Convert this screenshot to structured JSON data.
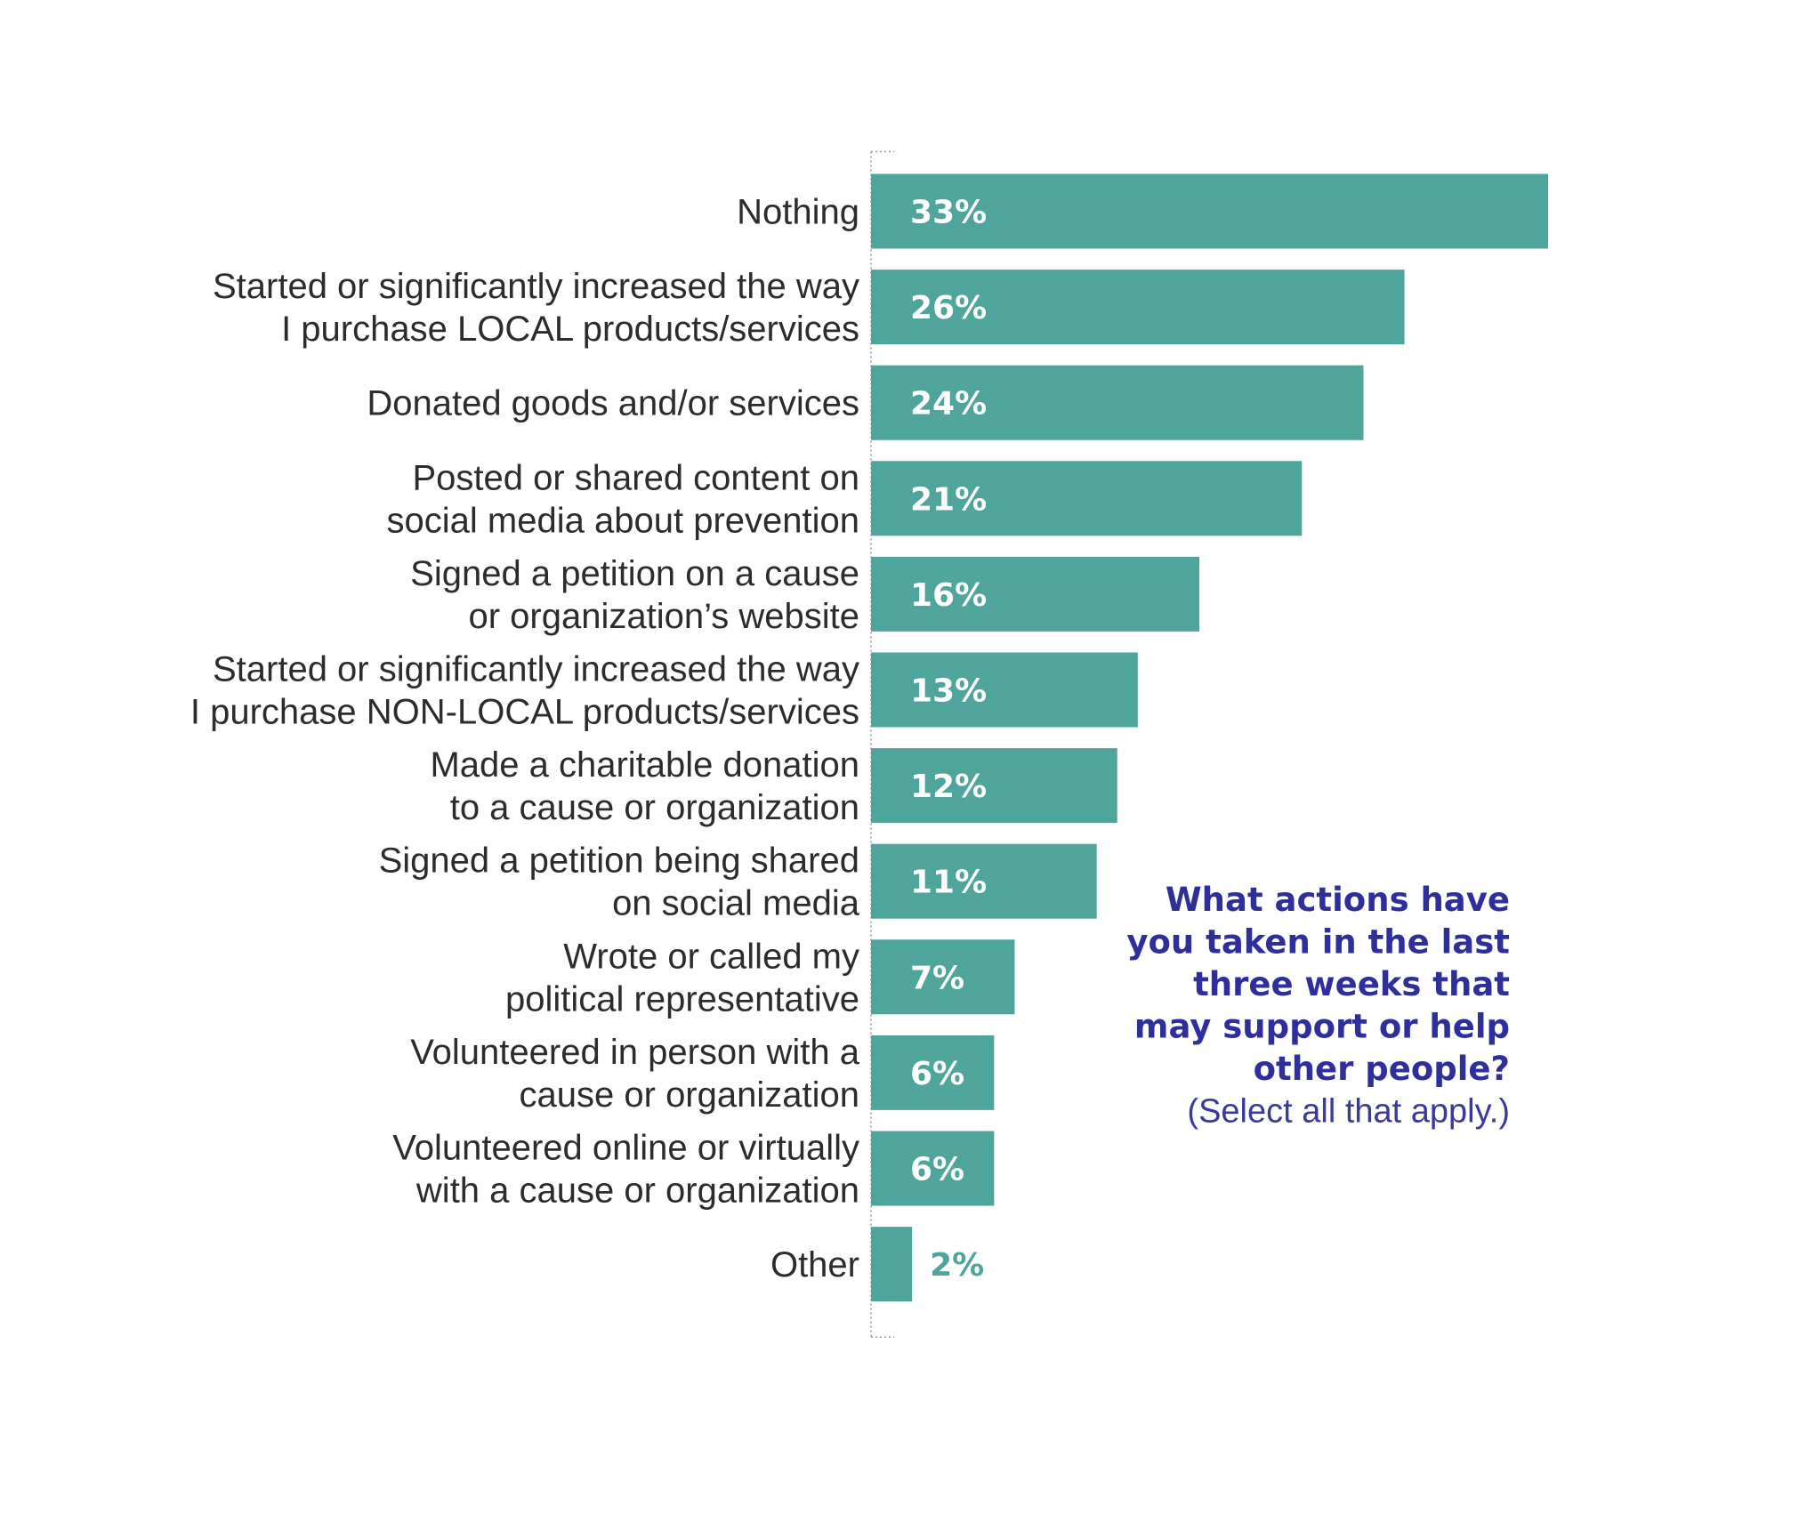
{
  "chart_data": {
    "type": "bar",
    "orientation": "horizontal",
    "categories": [
      [
        "Nothing"
      ],
      [
        "Started or significantly increased the way",
        "I purchase LOCAL products/services"
      ],
      [
        "Donated goods and/or services"
      ],
      [
        "Posted or shared content on",
        "social media about prevention"
      ],
      [
        "Signed a petition on a cause",
        "or organization’s website"
      ],
      [
        "Started or significantly increased the way",
        "I purchase NON-LOCAL products/services"
      ],
      [
        "Made a charitable donation",
        "to a cause or organization"
      ],
      [
        "Signed a petition being shared",
        "on social media"
      ],
      [
        "Wrote or called my",
        "political representative"
      ],
      [
        "Volunteered in person with a",
        "cause or organization"
      ],
      [
        "Volunteered online or virtually",
        "with a cause or organization"
      ],
      [
        "Other"
      ]
    ],
    "values": [
      33,
      26,
      24,
      21,
      16,
      13,
      12,
      11,
      7,
      6,
      6,
      2
    ],
    "value_labels": [
      "33%",
      "26%",
      "24%",
      "21%",
      "16%",
      "13%",
      "12%",
      "11%",
      "7%",
      "6%",
      "6%",
      "2%"
    ],
    "unit": "%",
    "xlim": [
      0,
      33
    ],
    "grid": false,
    "legend": "none",
    "bar_color": "#4fa59b",
    "inside_label_color": "#ffffff",
    "outside_label_color": "#4fa59b",
    "question_lines": [
      "What actions have",
      "you taken in the last",
      "three weeks that",
      "may support or help",
      "other people?"
    ],
    "instruction": "(Select all that apply.)",
    "question_color": "#2f2f9c"
  }
}
